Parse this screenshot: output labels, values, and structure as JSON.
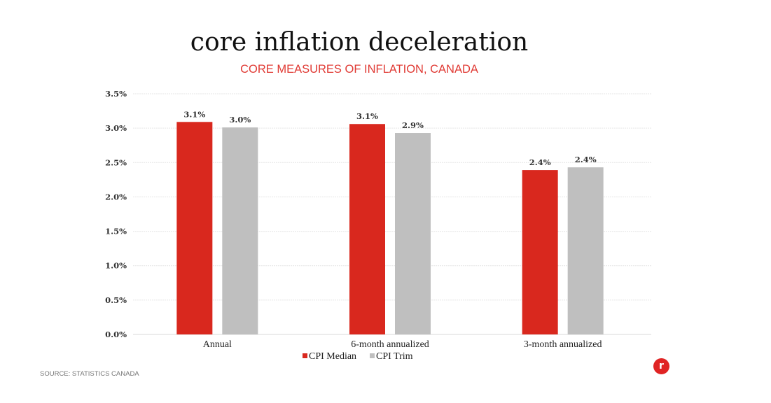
{
  "header": {
    "title": "core inflation deceleration",
    "subtitle": "CORE MEASURES OF INFLATION, CANADA"
  },
  "footer": {
    "source": "SOURCE: STATISTICS CANADA",
    "logo_glyph": "r"
  },
  "chart_data": {
    "type": "bar",
    "title": "core inflation deceleration",
    "subtitle": "CORE MEASURES OF INFLATION, CANADA",
    "xlabel": "",
    "ylabel": "",
    "categories": [
      "Annual",
      "6-month annualized",
      "3-month annualized"
    ],
    "series": [
      {
        "name": "CPI Median",
        "color": "#d9281e",
        "values": [
          3.09,
          3.06,
          2.39
        ],
        "labels": [
          "3.1%",
          "3.1%",
          "2.4%"
        ]
      },
      {
        "name": "CPI Trim",
        "color": "#bfbfbf",
        "values": [
          3.01,
          2.93,
          2.43
        ],
        "labels": [
          "3.0%",
          "2.9%",
          "2.4%"
        ]
      }
    ],
    "ylim": [
      0,
      3.5
    ],
    "yticks": [
      "0.0%",
      "0.5%",
      "1.0%",
      "1.5%",
      "2.0%",
      "2.5%",
      "3.0%",
      "3.5%"
    ],
    "ytick_values": [
      0,
      0.5,
      1.0,
      1.5,
      2.0,
      2.5,
      3.0,
      3.5
    ],
    "grid": true,
    "legend": "bottom-center",
    "source": "SOURCE: STATISTICS CANADA"
  }
}
